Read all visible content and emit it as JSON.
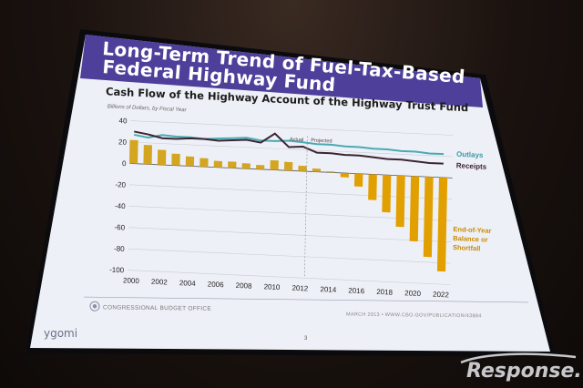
{
  "slide": {
    "title_line1": "Long-Term Trend of Fuel-Tax-Based",
    "title_line2": "Federal Highway Fund",
    "brand": "ygomi",
    "page_number": "3"
  },
  "footer": {
    "source": "CONGRESSIONAL BUDGET OFFICE",
    "right": "MARCH 2013 • WWW.CBO.GOV/PUBLICATION/43884"
  },
  "watermark": "Response.",
  "chart_data": {
    "type": "bar",
    "title": "Cash Flow of the Highway Account of the Highway Trust Fund",
    "units": "Billions of Dollars, by Fiscal Year",
    "ylim": [
      -100,
      40
    ],
    "yticks": [
      40,
      20,
      0,
      -20,
      -40,
      -60,
      -80,
      -100
    ],
    "xticks": [
      "2000",
      "2002",
      "2004",
      "2006",
      "2008",
      "2010",
      "2012",
      "2014",
      "2016",
      "2018",
      "2020",
      "2022"
    ],
    "x": [
      2000,
      2001,
      2002,
      2003,
      2004,
      2005,
      2006,
      2007,
      2008,
      2009,
      2010,
      2011,
      2012,
      2013,
      2014,
      2015,
      2016,
      2017,
      2018,
      2019,
      2020,
      2021,
      2022
    ],
    "annotations": {
      "actual": "Actual",
      "projected": "Projected",
      "split_year": 2012.3
    },
    "series": [
      {
        "name": "End-of-Year Balance or Shortfall",
        "label_lines": [
          "End-of-Year",
          "Balance or",
          "Shortfall"
        ],
        "kind": "bar",
        "values": [
          22,
          18,
          14,
          11,
          9,
          8,
          6,
          6,
          5,
          4,
          9,
          8,
          5,
          3,
          1,
          -4,
          -12,
          -24,
          -35,
          -48,
          -61,
          -75,
          -88
        ]
      },
      {
        "name": "Outlays",
        "kind": "line",
        "color": "#4aa9b4",
        "values": [
          27,
          25,
          28,
          27,
          27,
          26,
          27,
          28,
          29,
          27,
          27,
          28,
          27,
          26,
          26,
          25,
          25,
          24,
          24,
          23,
          23,
          22,
          22
        ]
      },
      {
        "name": "Receipts",
        "kind": "line",
        "color": "#3b2430",
        "values": [
          30,
          28,
          25,
          25,
          26,
          26,
          25,
          26,
          27,
          25,
          34,
          22,
          23,
          18,
          18,
          17,
          17,
          16,
          15,
          15,
          14,
          13,
          13
        ]
      }
    ]
  }
}
